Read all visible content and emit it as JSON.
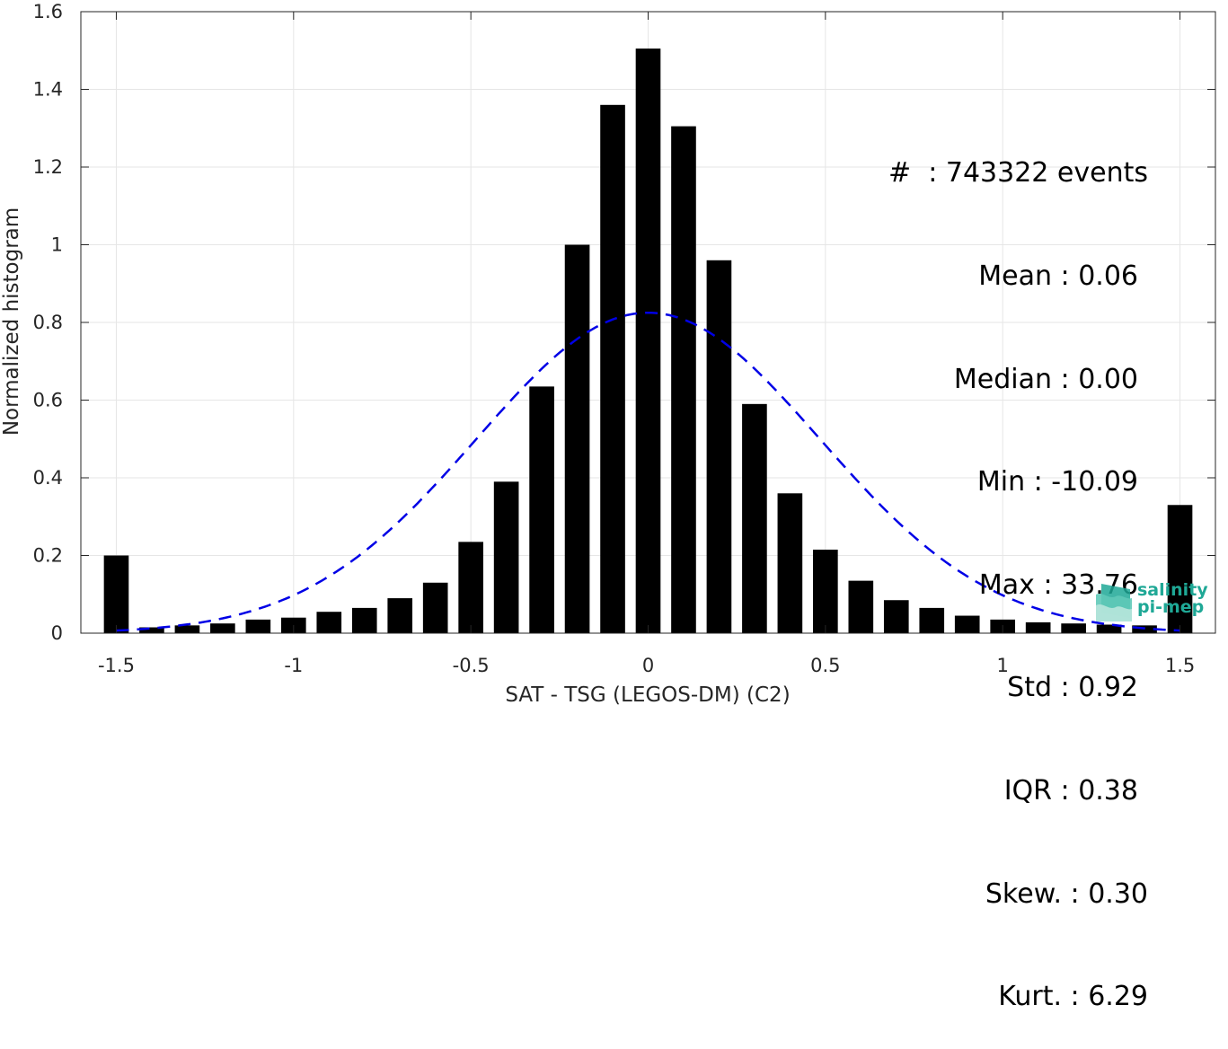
{
  "chart_data": {
    "type": "bar",
    "xlabel": "SAT - TSG (LEGOS-DM) (C2)",
    "ylabel": "Normalized histogram",
    "xlim": [
      -1.6,
      1.6
    ],
    "ylim": [
      0,
      1.6
    ],
    "xticks": [
      -1.5,
      -1,
      -0.5,
      0,
      0.5,
      1,
      1.5
    ],
    "xtick_labels": [
      "-1.5",
      "-1",
      "-0.5",
      "0",
      "0.5",
      "1",
      "1.5"
    ],
    "yticks": [
      0,
      0.2,
      0.4,
      0.6,
      0.8,
      1,
      1.2,
      1.4,
      1.6
    ],
    "ytick_labels": [
      "0",
      "0.2",
      "0.4",
      "0.6",
      "0.8",
      "1",
      "1.2",
      "1.4",
      "1.6"
    ],
    "grid": true,
    "bar_width": 0.07,
    "bar_color": "#000000",
    "x": [
      -1.5,
      -1.4,
      -1.3,
      -1.2,
      -1.1,
      -1.0,
      -0.9,
      -0.8,
      -0.7,
      -0.6,
      -0.5,
      -0.4,
      -0.3,
      -0.2,
      -0.1,
      0.0,
      0.1,
      0.2,
      0.3,
      0.4,
      0.5,
      0.6,
      0.7,
      0.8,
      0.9,
      1.0,
      1.1,
      1.2,
      1.3,
      1.4,
      1.5
    ],
    "values": [
      0.2,
      0.015,
      0.02,
      0.025,
      0.035,
      0.04,
      0.055,
      0.065,
      0.09,
      0.13,
      0.235,
      0.39,
      0.635,
      1.0,
      1.36,
      1.505,
      1.305,
      0.96,
      0.59,
      0.36,
      0.215,
      0.135,
      0.085,
      0.065,
      0.045,
      0.035,
      0.028,
      0.025,
      0.022,
      0.02,
      0.33
    ],
    "fit_curve": {
      "type": "gaussian",
      "mean": 0.0,
      "std": 0.484,
      "peak": 0.825,
      "color": "#0000e6",
      "style": "dashed"
    }
  },
  "stats": {
    "events": "#  : 743322 events",
    "mean": "Mean : 0.06",
    "median": "Median : 0.00",
    "min": "Min : -10.09",
    "max": "Max : 33.76",
    "std": "Std : 0.92",
    "iqr": "IQR : 0.38",
    "skew": "Skew. : 0.30",
    "kurt": "Kurt. : 6.29"
  },
  "logo": {
    "line1": "salinity",
    "line2": "pi-mep",
    "color": "#1fa896",
    "icon": "salinity-wave-logo-icon"
  }
}
